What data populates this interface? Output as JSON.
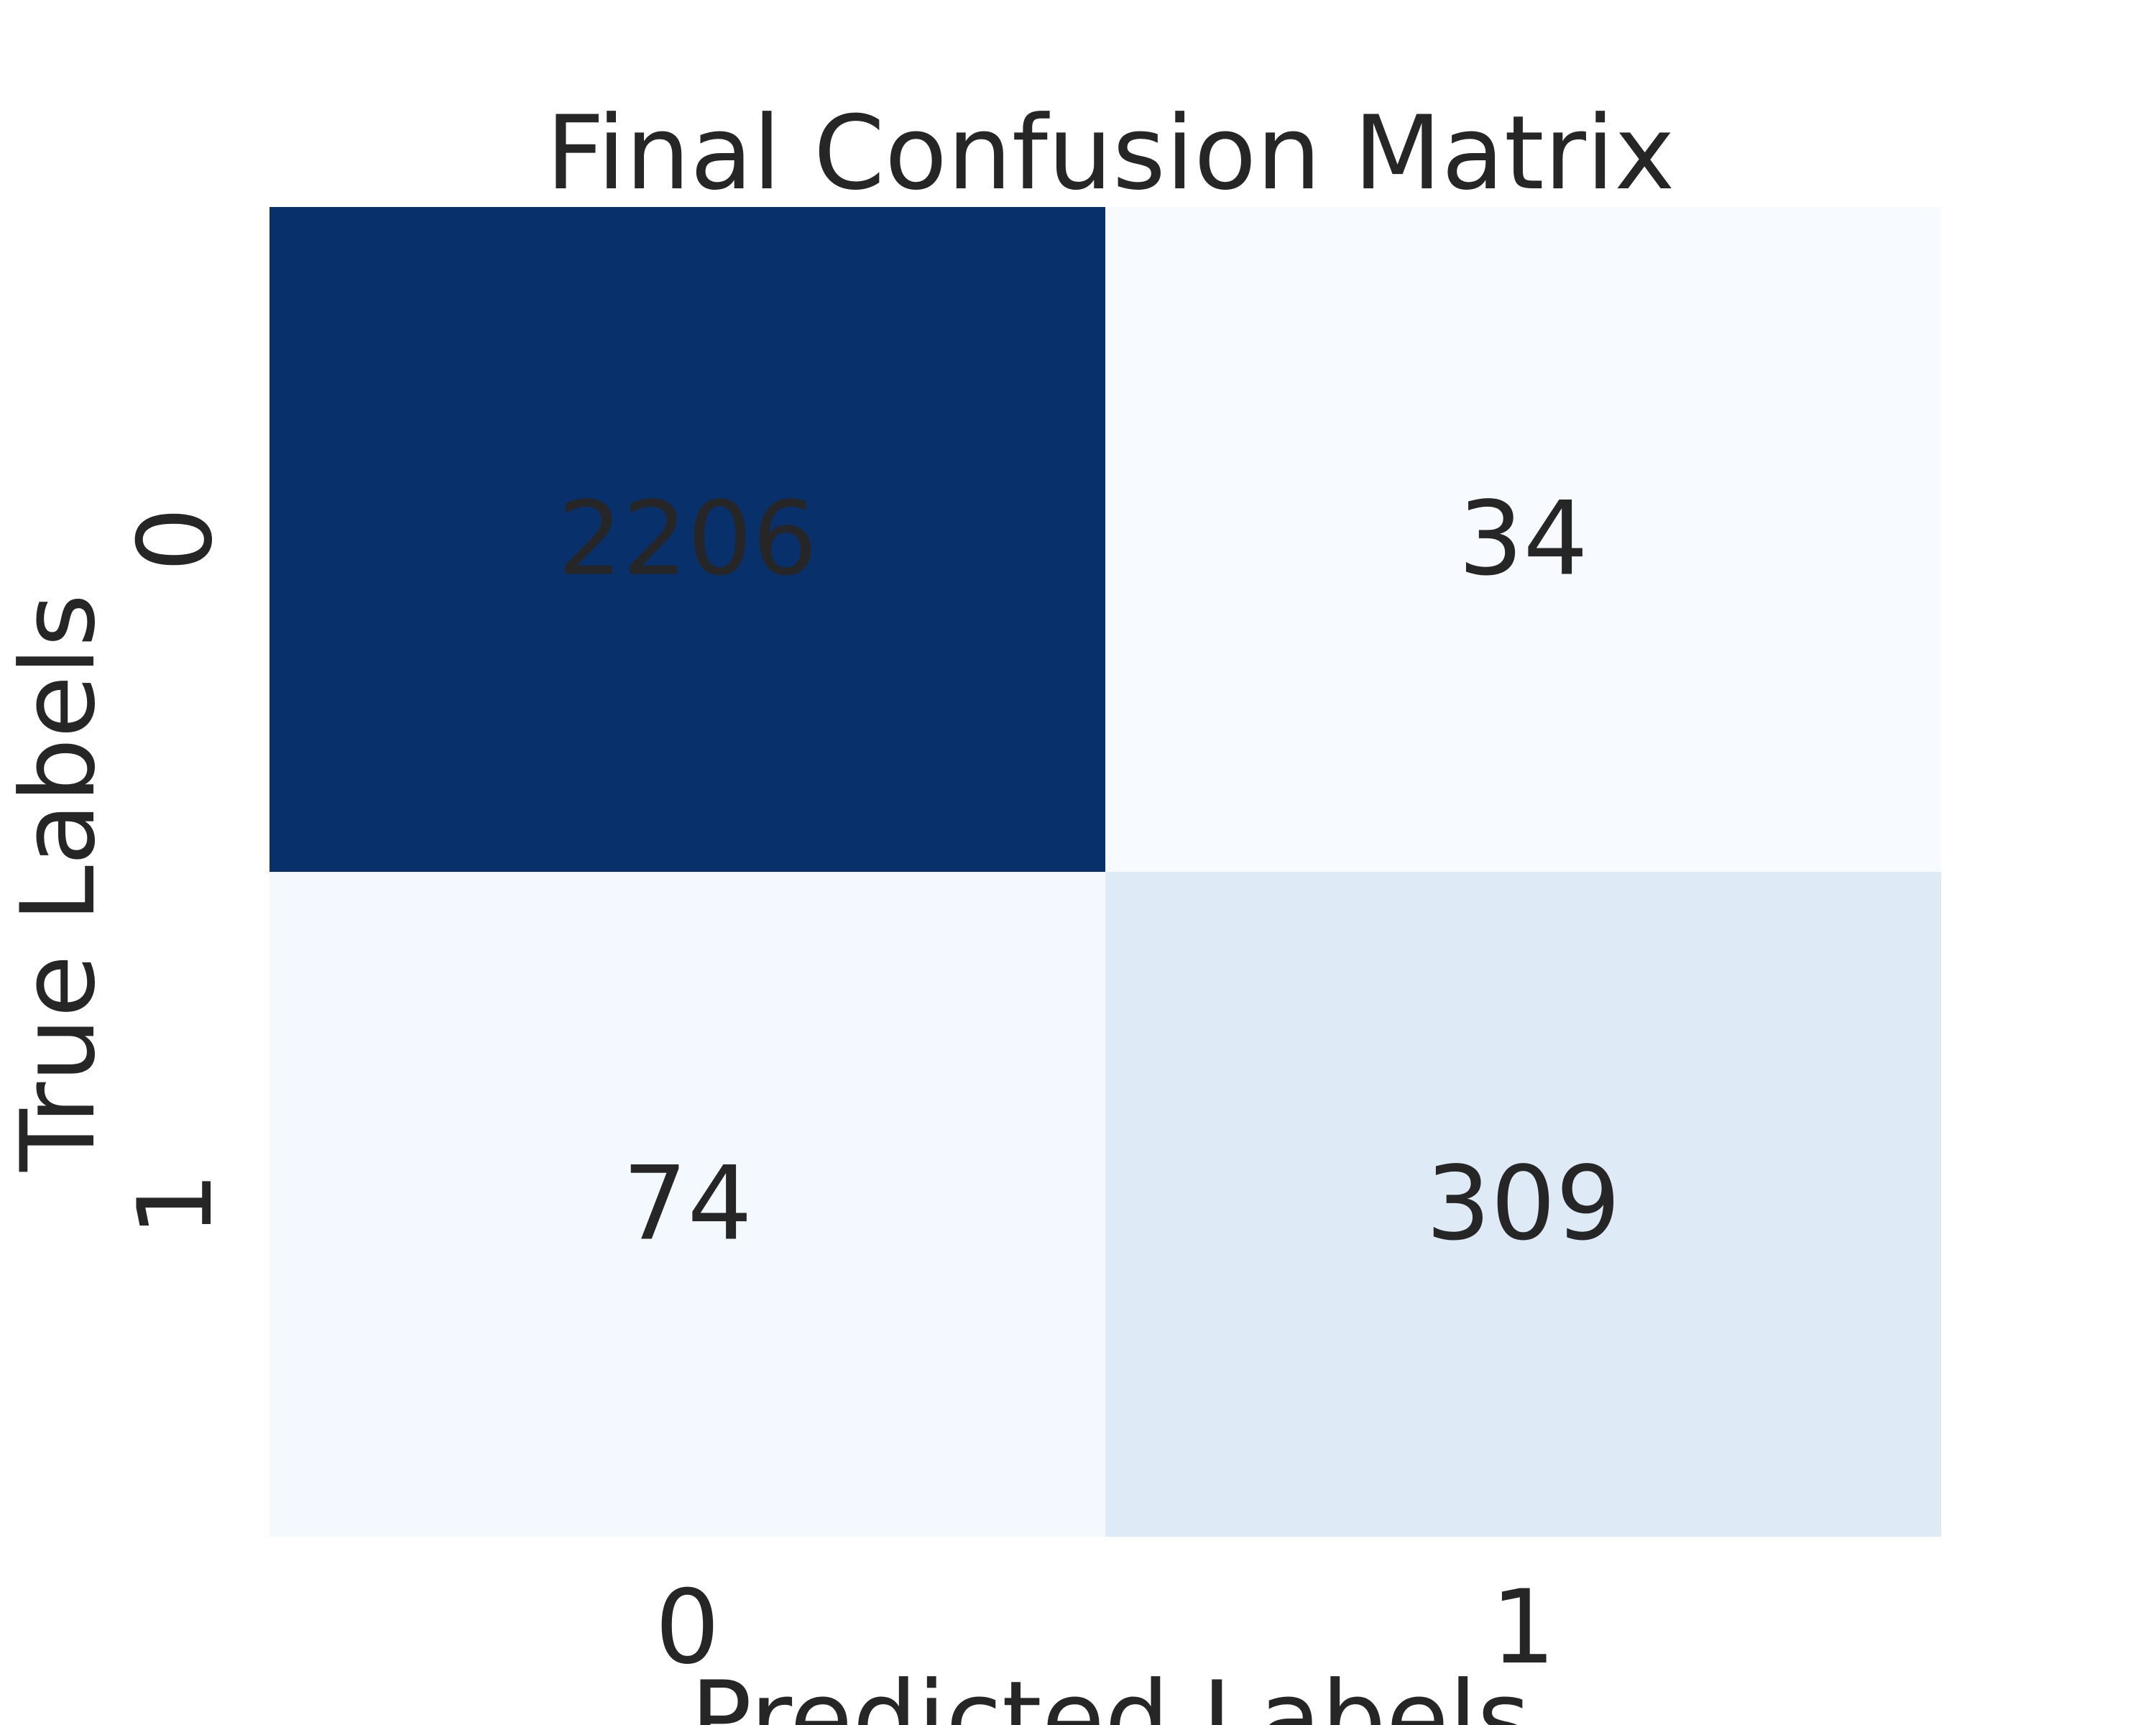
{
  "chart_data": {
    "type": "heatmap",
    "title": "Final Confusion Matrix",
    "xlabel": "Predicted Labels",
    "ylabel": "True Labels",
    "x_categories": [
      "0",
      "1"
    ],
    "y_categories": [
      "0",
      "1"
    ],
    "values": [
      [
        2206,
        34
      ],
      [
        74,
        309
      ]
    ],
    "colormap": "Blues",
    "colors": {
      "min": "#f7fbff",
      "max": "#08306b",
      "text_dark": "#262626",
      "text_light": "#ffffff"
    },
    "grid": false,
    "colorbar": false
  }
}
